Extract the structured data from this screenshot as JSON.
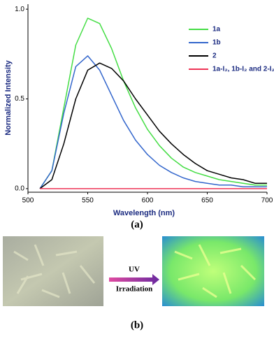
{
  "chart_data": {
    "type": "line",
    "x_label": "Wavelength (nm)",
    "y_label": "Normalized Intensity",
    "x": [
      510,
      520,
      530,
      540,
      550,
      560,
      570,
      580,
      590,
      600,
      610,
      620,
      630,
      640,
      650,
      660,
      670,
      680,
      690,
      700
    ],
    "series": [
      {
        "name": "1a",
        "color": "#44dd44",
        "values": [
          0,
          0.1,
          0.45,
          0.8,
          0.95,
          0.92,
          0.78,
          0.6,
          0.45,
          0.33,
          0.24,
          0.17,
          0.12,
          0.09,
          0.07,
          0.05,
          0.04,
          0.03,
          0.02,
          0.02
        ]
      },
      {
        "name": "1b",
        "color": "#3366cc",
        "values": [
          0,
          0.1,
          0.42,
          0.68,
          0.74,
          0.66,
          0.52,
          0.38,
          0.27,
          0.19,
          0.13,
          0.09,
          0.06,
          0.04,
          0.03,
          0.02,
          0.02,
          0.01,
          0.01,
          0.01
        ]
      },
      {
        "name": "2",
        "color": "#000000",
        "values": [
          0,
          0.05,
          0.25,
          0.5,
          0.66,
          0.7,
          0.67,
          0.6,
          0.5,
          0.41,
          0.32,
          0.25,
          0.19,
          0.14,
          0.1,
          0.08,
          0.06,
          0.05,
          0.03,
          0.03
        ]
      },
      {
        "name": "1a-I₂, 1b-I₂ and 2-I₂",
        "color": "#ee3355",
        "values": [
          0,
          0,
          0,
          0,
          0,
          0,
          0,
          0,
          0,
          0,
          0,
          0,
          0,
          0,
          0,
          0,
          0,
          0,
          0,
          0
        ]
      }
    ],
    "xlim": [
      500,
      700
    ],
    "ylim": [
      -0.02,
      1.02
    ],
    "xticks": [
      500,
      550,
      600,
      650,
      700
    ],
    "yticks": [
      {
        "value": 0,
        "label": "0.0"
      },
      0.5,
      {
        "value": 1,
        "label": "1.0"
      }
    ],
    "legend": "upper right"
  },
  "panel_labels": [
    "(a)",
    "(b)"
  ],
  "arrow_text": [
    "UV",
    "Irradiation"
  ]
}
